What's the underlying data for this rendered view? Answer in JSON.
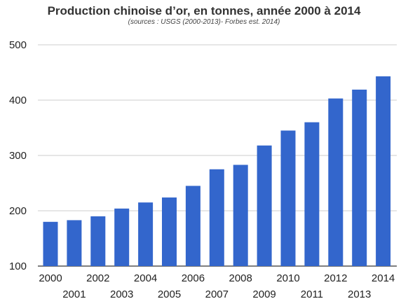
{
  "chart_data": {
    "type": "bar",
    "title": "Production chinoise d’or, en tonnes, année 2000 à 2014",
    "subtitle": "(sources : USGS (2000-2013)- Forbes est. 2014)",
    "xlabel": "",
    "ylabel": "",
    "ylim": [
      100,
      500
    ],
    "yticks": [
      100,
      200,
      300,
      400,
      500
    ],
    "grid": true,
    "bar_color": "#3366cc",
    "categories": [
      "2000",
      "2001",
      "2002",
      "2003",
      "2004",
      "2005",
      "2006",
      "2007",
      "2008",
      "2009",
      "2010",
      "2011",
      "2012",
      "2013",
      "2014"
    ],
    "values": [
      180,
      183,
      190,
      204,
      215,
      224,
      245,
      275,
      283,
      318,
      345,
      360,
      403,
      419,
      443
    ]
  }
}
